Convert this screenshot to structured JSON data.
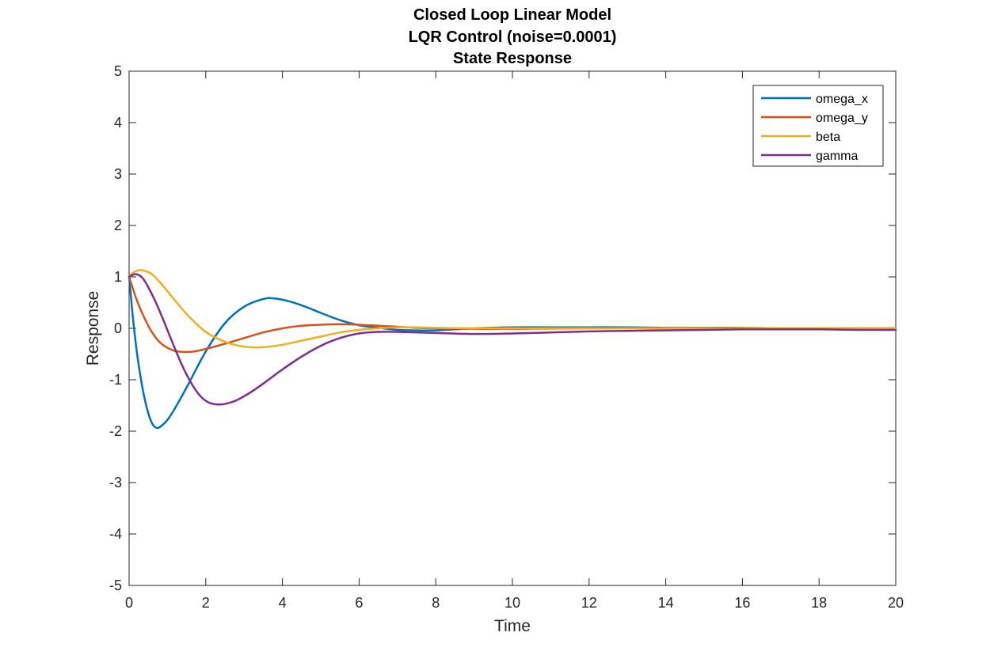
{
  "chart_data": {
    "type": "line",
    "title": [
      "Closed Loop Linear Model",
      "LQR Control (noise=0.0001)",
      "State Response"
    ],
    "xlabel": "Time",
    "ylabel": "Response",
    "xlim": [
      0,
      20
    ],
    "ylim": [
      -5,
      5
    ],
    "xticks": [
      "0",
      "2",
      "4",
      "6",
      "8",
      "10",
      "12",
      "14",
      "16",
      "18",
      "20"
    ],
    "yticks": [
      "-5",
      "-4",
      "-3",
      "-2",
      "-1",
      "0",
      "1",
      "2",
      "3",
      "4",
      "5"
    ],
    "grid": false,
    "legend_position": "top-right",
    "series": [
      {
        "name": "omega_x",
        "color": "#0072BD",
        "points": [
          [
            0,
            1.0
          ],
          [
            0.05,
            0.6
          ],
          [
            0.1,
            0.2
          ],
          [
            0.2,
            -0.45
          ],
          [
            0.3,
            -0.95
          ],
          [
            0.4,
            -1.35
          ],
          [
            0.5,
            -1.65
          ],
          [
            0.6,
            -1.85
          ],
          [
            0.7,
            -1.93
          ],
          [
            0.8,
            -1.92
          ],
          [
            1.0,
            -1.78
          ],
          [
            1.2,
            -1.55
          ],
          [
            1.5,
            -1.15
          ],
          [
            2.0,
            -0.45
          ],
          [
            2.5,
            0.1
          ],
          [
            3.0,
            0.42
          ],
          [
            3.5,
            0.57
          ],
          [
            3.8,
            0.58
          ],
          [
            4.2,
            0.52
          ],
          [
            4.6,
            0.42
          ],
          [
            5.0,
            0.3
          ],
          [
            5.5,
            0.16
          ],
          [
            6.0,
            0.06
          ],
          [
            6.5,
            0.01
          ],
          [
            7.0,
            -0.03
          ],
          [
            7.5,
            -0.04
          ],
          [
            8.0,
            -0.04
          ],
          [
            8.5,
            -0.02
          ],
          [
            9.0,
            0.0
          ],
          [
            10.0,
            0.02
          ],
          [
            11.0,
            0.02
          ],
          [
            12.0,
            0.02
          ],
          [
            13.0,
            0.02
          ],
          [
            14.0,
            0.01
          ],
          [
            15.0,
            0.01
          ],
          [
            16.0,
            0.01
          ],
          [
            17.0,
            0.0
          ],
          [
            18.0,
            0.0
          ],
          [
            19.0,
            0.0
          ],
          [
            20.0,
            0.0
          ]
        ]
      },
      {
        "name": "omega_y",
        "color": "#D95319",
        "points": [
          [
            0,
            1.0
          ],
          [
            0.2,
            0.55
          ],
          [
            0.4,
            0.2
          ],
          [
            0.6,
            -0.08
          ],
          [
            0.8,
            -0.27
          ],
          [
            1.0,
            -0.38
          ],
          [
            1.2,
            -0.44
          ],
          [
            1.45,
            -0.46
          ],
          [
            1.7,
            -0.45
          ],
          [
            2.0,
            -0.4
          ],
          [
            2.5,
            -0.3
          ],
          [
            3.0,
            -0.19
          ],
          [
            3.5,
            -0.08
          ],
          [
            4.0,
            0.0
          ],
          [
            4.5,
            0.05
          ],
          [
            5.0,
            0.07
          ],
          [
            5.5,
            0.08
          ],
          [
            6.0,
            0.07
          ],
          [
            6.5,
            0.05
          ],
          [
            7.0,
            0.03
          ],
          [
            7.5,
            0.01
          ],
          [
            8.0,
            0.0
          ],
          [
            9.0,
            -0.01
          ],
          [
            10.0,
            -0.01
          ],
          [
            12.0,
            0.0
          ],
          [
            14.0,
            0.0
          ],
          [
            16.0,
            0.0
          ],
          [
            18.0,
            0.0
          ],
          [
            20.0,
            0.0
          ]
        ]
      },
      {
        "name": "beta",
        "color": "#EDB120",
        "points": [
          [
            0,
            1.0
          ],
          [
            0.1,
            1.08
          ],
          [
            0.25,
            1.13
          ],
          [
            0.4,
            1.12
          ],
          [
            0.6,
            1.05
          ],
          [
            0.8,
            0.9
          ],
          [
            1.0,
            0.72
          ],
          [
            1.3,
            0.45
          ],
          [
            1.6,
            0.2
          ],
          [
            2.0,
            -0.07
          ],
          [
            2.4,
            -0.23
          ],
          [
            2.8,
            -0.33
          ],
          [
            3.2,
            -0.37
          ],
          [
            3.6,
            -0.36
          ],
          [
            4.0,
            -0.32
          ],
          [
            4.5,
            -0.24
          ],
          [
            5.0,
            -0.16
          ],
          [
            5.5,
            -0.08
          ],
          [
            6.0,
            -0.03
          ],
          [
            6.5,
            0.0
          ],
          [
            7.0,
            0.02
          ],
          [
            7.5,
            0.02
          ],
          [
            8.0,
            0.01
          ],
          [
            9.0,
            0.0
          ],
          [
            10.0,
            0.0
          ],
          [
            12.0,
            0.0
          ],
          [
            14.0,
            0.0
          ],
          [
            16.0,
            0.0
          ],
          [
            18.0,
            0.0
          ],
          [
            20.0,
            0.0
          ]
        ]
      },
      {
        "name": "gamma",
        "color": "#7E2F8E",
        "points": [
          [
            0,
            1.0
          ],
          [
            0.1,
            1.04
          ],
          [
            0.2,
            1.05
          ],
          [
            0.35,
            0.98
          ],
          [
            0.5,
            0.8
          ],
          [
            0.7,
            0.5
          ],
          [
            0.9,
            0.15
          ],
          [
            1.1,
            -0.22
          ],
          [
            1.3,
            -0.58
          ],
          [
            1.5,
            -0.9
          ],
          [
            1.7,
            -1.16
          ],
          [
            1.9,
            -1.35
          ],
          [
            2.1,
            -1.45
          ],
          [
            2.3,
            -1.48
          ],
          [
            2.5,
            -1.47
          ],
          [
            2.8,
            -1.4
          ],
          [
            3.2,
            -1.23
          ],
          [
            3.6,
            -1.02
          ],
          [
            4.0,
            -0.8
          ],
          [
            4.5,
            -0.55
          ],
          [
            5.0,
            -0.34
          ],
          [
            5.5,
            -0.19
          ],
          [
            6.0,
            -0.1
          ],
          [
            6.5,
            -0.07
          ],
          [
            7.0,
            -0.07
          ],
          [
            8.0,
            -0.09
          ],
          [
            9.0,
            -0.11
          ],
          [
            10.0,
            -0.1
          ],
          [
            11.0,
            -0.08
          ],
          [
            12.0,
            -0.06
          ],
          [
            13.0,
            -0.05
          ],
          [
            14.0,
            -0.04
          ],
          [
            15.0,
            -0.03
          ],
          [
            16.0,
            -0.02
          ],
          [
            17.0,
            -0.02
          ],
          [
            18.0,
            -0.02
          ],
          [
            19.0,
            -0.03
          ],
          [
            20.0,
            -0.03
          ]
        ]
      }
    ]
  }
}
